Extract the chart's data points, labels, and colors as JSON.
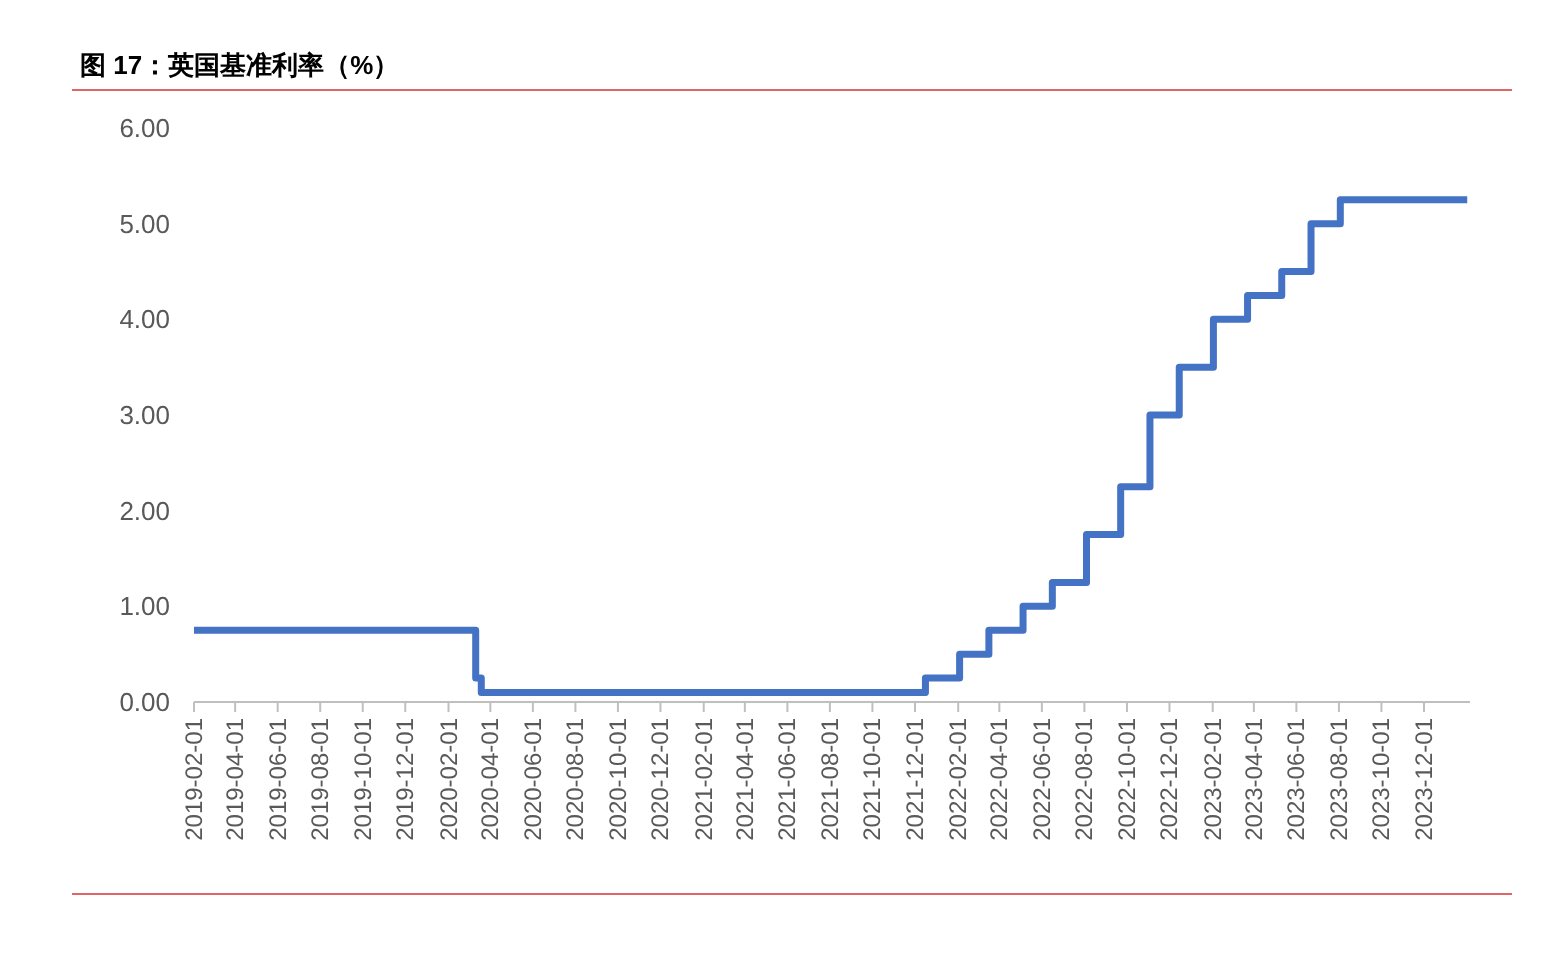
{
  "chart_data": {
    "type": "step",
    "title": "图 17：英国基准利率（%）",
    "color": "#4472c4",
    "x": [
      "2019-02-01",
      "2020-03-11",
      "2020-03-19",
      "2021-12-16",
      "2022-02-03",
      "2022-03-17",
      "2022-05-05",
      "2022-06-16",
      "2022-08-04",
      "2022-09-22",
      "2022-11-03",
      "2022-12-15",
      "2023-02-02",
      "2023-03-23",
      "2023-05-11",
      "2023-06-22",
      "2023-08-03",
      "2024-02-01"
    ],
    "values": [
      0.75,
      0.25,
      0.1,
      0.25,
      0.5,
      0.75,
      1.0,
      1.25,
      1.75,
      2.25,
      3.0,
      3.5,
      4.0,
      4.25,
      4.5,
      5.0,
      5.25,
      5.25
    ],
    "xlim": [
      "2019-02-01",
      "2024-02-05"
    ],
    "xticks": [
      "2019-02-01",
      "2019-04-01",
      "2019-06-01",
      "2019-08-01",
      "2019-10-01",
      "2019-12-01",
      "2020-02-01",
      "2020-04-01",
      "2020-06-01",
      "2020-08-01",
      "2020-10-01",
      "2020-12-01",
      "2021-02-01",
      "2021-04-01",
      "2021-06-01",
      "2021-08-01",
      "2021-10-01",
      "2021-12-01",
      "2022-02-01",
      "2022-04-01",
      "2022-06-01",
      "2022-08-01",
      "2022-10-01",
      "2022-12-01",
      "2023-02-01",
      "2023-04-01",
      "2023-06-01",
      "2023-08-01",
      "2023-10-01",
      "2023-12-01"
    ],
    "ylim": [
      0,
      6
    ],
    "yticks": [
      {
        "value": 0,
        "label": "0.00"
      },
      {
        "value": 1,
        "label": "1.00"
      },
      {
        "value": 2,
        "label": "2.00"
      },
      {
        "value": 3,
        "label": "3.00"
      },
      {
        "value": 4,
        "label": "4.00"
      },
      {
        "value": 5,
        "label": "5.00"
      },
      {
        "value": 6,
        "label": "6.00"
      }
    ],
    "marker": "none"
  }
}
